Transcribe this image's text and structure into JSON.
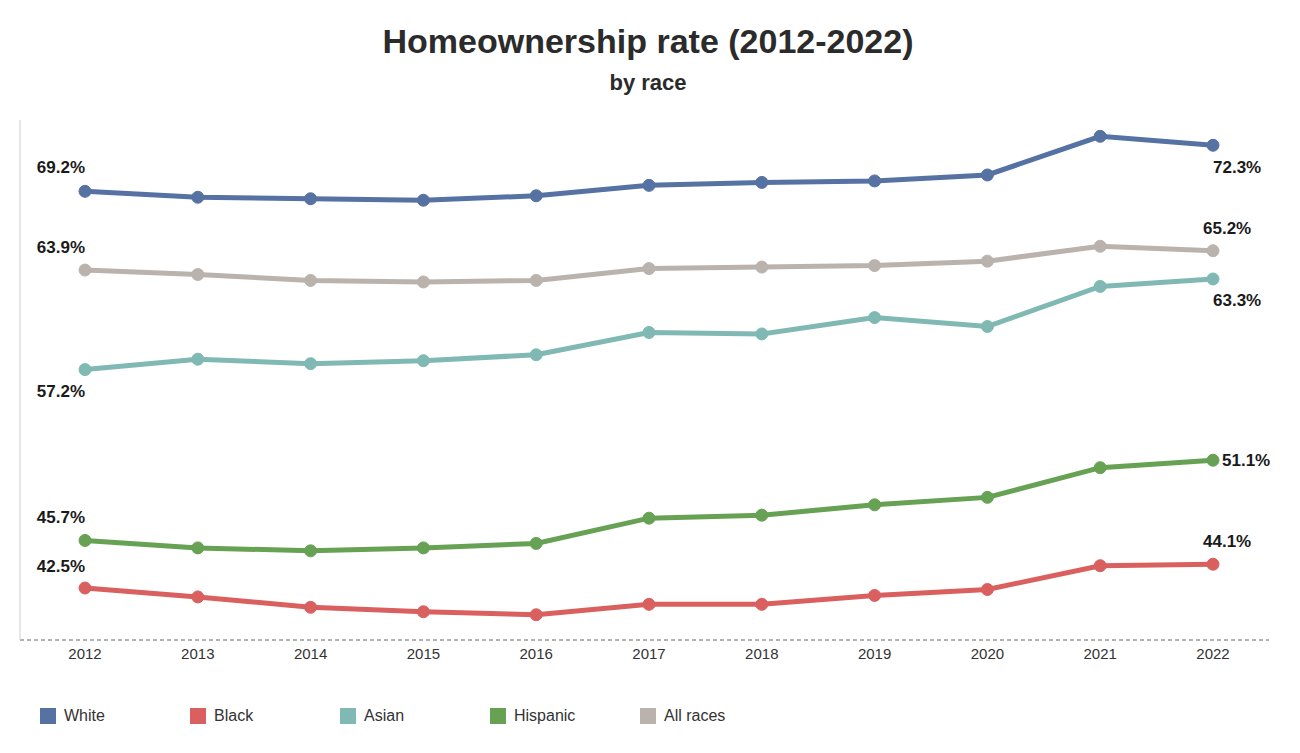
{
  "chart_data": {
    "type": "line",
    "title": "Homeownership rate (2012-2022)",
    "subtitle": "by race",
    "categories": [
      "2012",
      "2013",
      "2014",
      "2015",
      "2016",
      "2017",
      "2018",
      "2019",
      "2020",
      "2021",
      "2022"
    ],
    "ylim": [
      39,
      74
    ],
    "tick_labels": "x",
    "grid": false,
    "legend": "bottom",
    "data_labels": true,
    "series": [
      {
        "name": "White",
        "color": "#5572a3",
        "marker": "circle",
        "values": [
          69.2,
          68.8,
          68.7,
          68.6,
          68.9,
          69.6,
          69.8,
          69.9,
          70.3,
          72.9,
          72.3
        ],
        "value_labels": [
          "69.2%",
          null,
          null,
          null,
          null,
          null,
          null,
          null,
          null,
          null,
          "72.3%"
        ]
      },
      {
        "name": "Black",
        "color": "#d9605f",
        "marker": "circle",
        "values": [
          42.5,
          41.9,
          41.2,
          40.9,
          40.7,
          41.4,
          41.4,
          42.0,
          42.4,
          44.0,
          44.1
        ],
        "value_labels": [
          "42.5%",
          null,
          null,
          null,
          null,
          null,
          null,
          null,
          null,
          null,
          "44.1%"
        ]
      },
      {
        "name": "Asian",
        "color": "#80b9b3",
        "marker": "circle",
        "values": [
          57.2,
          57.9,
          57.6,
          57.8,
          58.2,
          59.7,
          59.6,
          60.7,
          60.1,
          62.8,
          63.3
        ],
        "value_labels": [
          "57.2%",
          null,
          null,
          null,
          null,
          null,
          null,
          null,
          null,
          null,
          "63.3%"
        ]
      },
      {
        "name": "Hispanic",
        "color": "#67a153",
        "marker": "circle",
        "values": [
          45.7,
          45.2,
          45.0,
          45.2,
          45.5,
          47.2,
          47.4,
          48.1,
          48.6,
          50.6,
          51.1
        ],
        "value_labels": [
          "45.7%",
          null,
          null,
          null,
          null,
          null,
          null,
          null,
          null,
          null,
          "51.1%"
        ]
      },
      {
        "name": "All races",
        "color": "#bab2ad",
        "marker": "circle",
        "values": [
          63.9,
          63.6,
          63.2,
          63.1,
          63.2,
          64.0,
          64.1,
          64.2,
          64.5,
          65.5,
          65.2
        ],
        "value_labels": [
          "63.9%",
          null,
          null,
          null,
          null,
          null,
          null,
          null,
          null,
          null,
          "65.2%"
        ]
      }
    ]
  }
}
